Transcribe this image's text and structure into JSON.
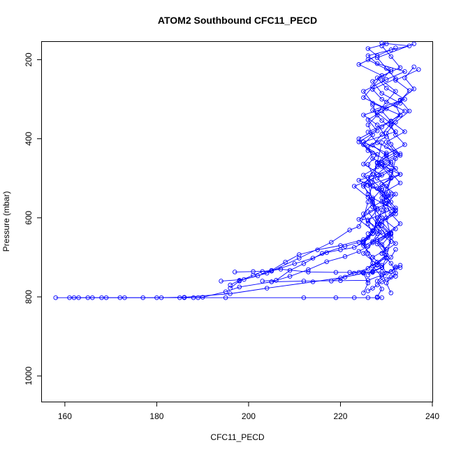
{
  "chart_data": {
    "type": "line",
    "title": "ATOM2 Southbound CFC11_PECD",
    "xlabel": "CFC11_PECD",
    "ylabel": "Pressure (mbar)",
    "xlim": [
      155,
      240
    ],
    "ylim": [
      1065,
      155
    ],
    "y_reversed": true,
    "x_ticks": [
      160,
      180,
      200,
      220,
      240
    ],
    "y_ticks": [
      200,
      400,
      600,
      800,
      1000
    ],
    "grid": false,
    "legend": "none",
    "marker": "open-circle",
    "color": "#0000ff",
    "series": [
      {
        "x": [
          158,
          162,
          163,
          166,
          169,
          172,
          177,
          181,
          186,
          189,
          195,
          212,
          219,
          223,
          226,
          228,
          229
        ],
        "y": [
          802,
          802,
          802,
          802,
          802,
          802,
          802,
          802,
          802,
          802,
          802,
          802,
          802,
          802,
          802,
          802,
          802
        ]
      },
      {
        "x": [
          161,
          165,
          168,
          173,
          180,
          186,
          196,
          204,
          214,
          221,
          225,
          227,
          229,
          231,
          232
        ],
        "y": [
          802,
          802,
          802,
          802,
          802,
          801,
          792,
          778,
          762,
          750,
          740,
          735,
          725,
          700,
          680
        ]
      },
      {
        "x": [
          185,
          188,
          190,
          195,
          198,
          205,
          212,
          220,
          226,
          229,
          231,
          232,
          233
        ],
        "y": [
          802,
          802,
          801,
          787,
          775,
          762,
          760,
          759,
          758,
          745,
          736,
          724,
          720
        ]
      },
      {
        "x": [
          196,
          198,
          201,
          203,
          207,
          213,
          219,
          224,
          227,
          229,
          230,
          231,
          230,
          229,
          231,
          232
        ],
        "y": [
          778,
          760,
          745,
          736,
          730,
          737,
          738,
          738,
          737,
          726,
          700,
          650,
          600,
          550,
          500,
          450
        ]
      },
      {
        "x": [
          196,
          198,
          202,
          205,
          208,
          211,
          215,
          220,
          225,
          227,
          228,
          229
        ],
        "y": [
          770,
          758,
          747,
          733,
          712,
          693,
          681,
          670,
          655,
          640,
          620,
          600
        ]
      },
      {
        "x": [
          197,
          201,
          205,
          210,
          214,
          217,
          220,
          223,
          225,
          227,
          228,
          227,
          226
        ],
        "y": [
          737,
          736,
          735,
          716,
          702,
          688,
          681,
          675,
          663,
          640,
          610,
          560,
          510
        ]
      },
      {
        "x": [
          194,
          199,
          204,
          211,
          218,
          222,
          224,
          225,
          226,
          227,
          228,
          229
        ],
        "y": [
          760,
          756,
          740,
          702,
          662,
          631,
          622,
          600,
          560,
          510,
          460,
          410
        ]
      },
      {
        "x": [
          203,
          206,
          209,
          212,
          216,
          221,
          224,
          226,
          227,
          228,
          229,
          230,
          231
        ],
        "y": [
          760,
          758,
          733,
          716,
          690,
          672,
          662,
          650,
          633,
          610,
          580,
          540,
          500
        ]
      },
      {
        "x": [
          205,
          209,
          213,
          217,
          221,
          224,
          226,
          227,
          228,
          229
        ],
        "y": [
          762,
          748,
          731,
          711,
          698,
          685,
          672,
          660,
          640,
          610
        ]
      },
      {
        "x": [
          222,
          225,
          227,
          229,
          231,
          232,
          233
        ],
        "y": [
          738,
          738,
          738,
          737,
          737,
          727,
          726
        ]
      },
      {
        "x": [
          226,
          227,
          228,
          229,
          230,
          231,
          232
        ],
        "y": [
          785,
          778,
          770,
          762,
          755,
          750,
          748
        ]
      },
      {
        "x": [
          218,
          220,
          223,
          226,
          228,
          230
        ],
        "y": [
          760,
          752,
          740,
          728,
          712,
          702
        ]
      },
      {
        "x": [
          226,
          229,
          232,
          227,
          225,
          228,
          231,
          226,
          224,
          229,
          233,
          227,
          225,
          230,
          234,
          228,
          226,
          231,
          235,
          229
        ],
        "y": [
          640,
          610,
          580,
          550,
          520,
          490,
          460,
          430,
          400,
          370,
          340,
          310,
          280,
          250,
          230,
          210,
          190,
          175,
          165,
          158
        ]
      },
      {
        "x": [
          227,
          225,
          230,
          228,
          226,
          231,
          229,
          224,
          232,
          227,
          226,
          230,
          228,
          225,
          233,
          229,
          227,
          231,
          226,
          232
        ],
        "y": [
          700,
          670,
          645,
          615,
          585,
          560,
          530,
          505,
          475,
          450,
          420,
          395,
          365,
          340,
          310,
          285,
          255,
          230,
          200,
          170
        ]
      },
      {
        "x": [
          229,
          231,
          228,
          226,
          232,
          230,
          227,
          225,
          229,
          233,
          228,
          226,
          231,
          234,
          229,
          227,
          232,
          230,
          228,
          236
        ],
        "y": [
          690,
          660,
          635,
          605,
          575,
          548,
          520,
          492,
          465,
          438,
          410,
          383,
          355,
          330,
          300,
          275,
          248,
          222,
          195,
          160
        ]
      },
      {
        "x": [
          230,
          228,
          232,
          229,
          227,
          231,
          226,
          233,
          228,
          230,
          225,
          232,
          229,
          227,
          234,
          230,
          228,
          233,
          231,
          229
        ],
        "y": [
          680,
          655,
          628,
          600,
          572,
          545,
          518,
          490,
          462,
          436,
          408,
          382,
          354,
          328,
          300,
          272,
          246,
          220,
          192,
          165
        ]
      },
      {
        "x": [
          225,
          227,
          224,
          228,
          226,
          223,
          229,
          225,
          227,
          224,
          228,
          226,
          230,
          225,
          227,
          229,
          224,
          228,
          226,
          230
        ],
        "y": [
          660,
          632,
          604,
          576,
          548,
          520,
          492,
          464,
          436,
          408,
          380,
          352,
          324,
          296,
          268,
          240,
          212,
          190,
          172,
          160
        ]
      },
      {
        "x": [
          228,
          230,
          229,
          231,
          228,
          232,
          230,
          229,
          233,
          231,
          228,
          232,
          230,
          234,
          231,
          229,
          233,
          235,
          232,
          237
        ],
        "y": [
          720,
          694,
          668,
          642,
          616,
          590,
          564,
          538,
          512,
          486,
          460,
          434,
          408,
          382,
          356,
          330,
          304,
          278,
          252,
          225
        ]
      },
      {
        "x": [
          229,
          227,
          230,
          228,
          231,
          229,
          232,
          230,
          228,
          231,
          229,
          233,
          231,
          230,
          232,
          235,
          233,
          236,
          234,
          236
        ],
        "y": [
          750,
          722,
          694,
          666,
          638,
          610,
          582,
          554,
          526,
          498,
          470,
          442,
          414,
          386,
          358,
          330,
          302,
          274,
          246,
          218
        ]
      },
      {
        "x": [
          226,
          228,
          225,
          227,
          229,
          226,
          228,
          227,
          229,
          226,
          228,
          230,
          227,
          229,
          231,
          228,
          230,
          232,
          229,
          231
        ],
        "y": [
          745,
          718,
          690,
          663,
          636,
          608,
          580,
          553,
          526,
          498,
          471,
          444,
          416,
          389,
          362,
          334,
          307,
          280,
          252,
          225
        ]
      },
      {
        "x": [
          228,
          229,
          228,
          230,
          229,
          227,
          230,
          228,
          231,
          229,
          228,
          230,
          229,
          231,
          230,
          228,
          231,
          229,
          232,
          230
        ],
        "y": [
          800,
          780,
          760,
          740,
          720,
          700,
          680,
          660,
          640,
          620,
          600,
          580,
          560,
          540,
          520,
          500,
          480,
          460,
          440,
          420
        ]
      },
      {
        "x": [
          225,
          226,
          225,
          227,
          226,
          225,
          227,
          226,
          225,
          227,
          226,
          225,
          227,
          226,
          228,
          225,
          227,
          226,
          228,
          227
        ],
        "y": [
          790,
          765,
          740,
          715,
          690,
          665,
          640,
          615,
          590,
          565,
          540,
          515,
          490,
          465,
          440,
          415,
          390,
          365,
          340,
          315
        ]
      },
      {
        "x": [
          231,
          230,
          232,
          231,
          229,
          232,
          230,
          233,
          231,
          230,
          232,
          229,
          233,
          231,
          230,
          234,
          232,
          231,
          233,
          232
        ],
        "y": [
          790,
          765,
          740,
          715,
          690,
          665,
          640,
          615,
          590,
          565,
          540,
          515,
          490,
          465,
          440,
          415,
          390,
          365,
          340,
          315
        ]
      }
    ]
  }
}
